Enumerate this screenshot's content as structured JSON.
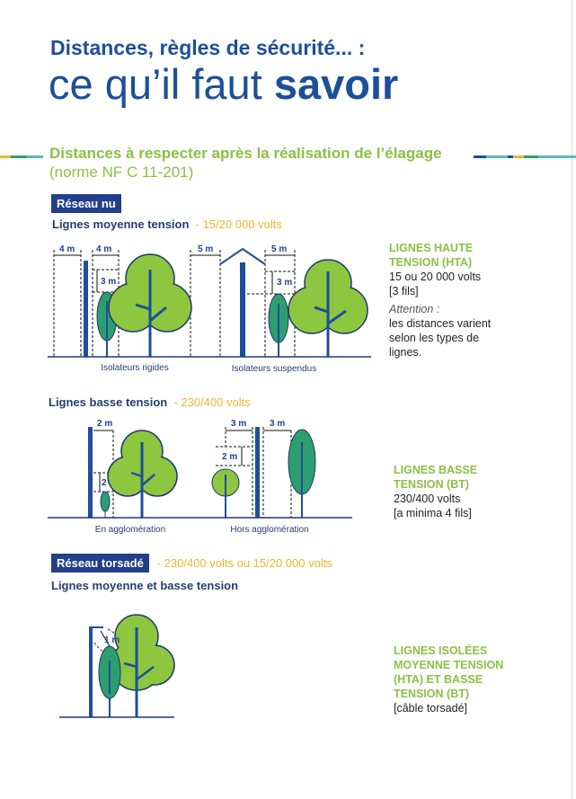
{
  "header": {
    "line1": "Distances, règles de sécurité... :",
    "line2_normal": "ce qu’il faut ",
    "line2_bold": "savoir"
  },
  "section": {
    "title": "Distances à respecter après la réalisation de l’élagage",
    "norm": "(norme NF C 11-201)"
  },
  "colors": {
    "navy": "#233f8c",
    "green": "#8cc046",
    "yellow": "#f0b432",
    "tree_light": "#8dc63f",
    "tree_dark": "#2e9e6e"
  },
  "reseau_nu": {
    "badge": "Réseau nu",
    "hta": {
      "title": "Lignes moyenne tension",
      "volts": "- 15/20 000 volts",
      "diagram": {
        "left_caption": "Isolateurs rigides",
        "right_caption": "Isolateurs suspendus",
        "d1": "4 m",
        "d2": "4 m",
        "d3": "3 m",
        "d4": "5 m",
        "d5": "5 m",
        "d6": "3 m"
      },
      "side": {
        "title1": "LIGNES HAUTE",
        "title2": "TENSION (HTA)",
        "line1": "15 ou 20 000 volts",
        "line2": "[3 fils]",
        "attention": "Attention :",
        "note1": "les distances varient",
        "note2": "selon les types de",
        "note3": "lignes."
      }
    },
    "bt": {
      "title": "Lignes basse tension",
      "volts": "- 230/400 volts",
      "diagram": {
        "left_caption": "En agglomération",
        "right_caption": "Hors agglomération",
        "d1": "2 m",
        "d2": "2 m",
        "d3": "3 m",
        "d4": "3 m",
        "d5": "2 m"
      },
      "side": {
        "title1": "LIGNES BASSE",
        "title2": "TENSION (BT)",
        "line1": "230/400 volts",
        "line2": "[a minima 4 fils]"
      }
    }
  },
  "reseau_torsade": {
    "badge": "Réseau torsadé",
    "volts": "- 230/400 volts ou 15/20 000 volts",
    "title": "Lignes moyenne et basse tension",
    "diagram": {
      "d1": "1 m"
    },
    "side": {
      "title1": "LIGNES ISOLÉES",
      "title2": "MOYENNE TENSION",
      "title3": "(HTA) ET BASSE",
      "title4": "TENSION (BT)",
      "line1": "[câble torsadé]"
    }
  }
}
